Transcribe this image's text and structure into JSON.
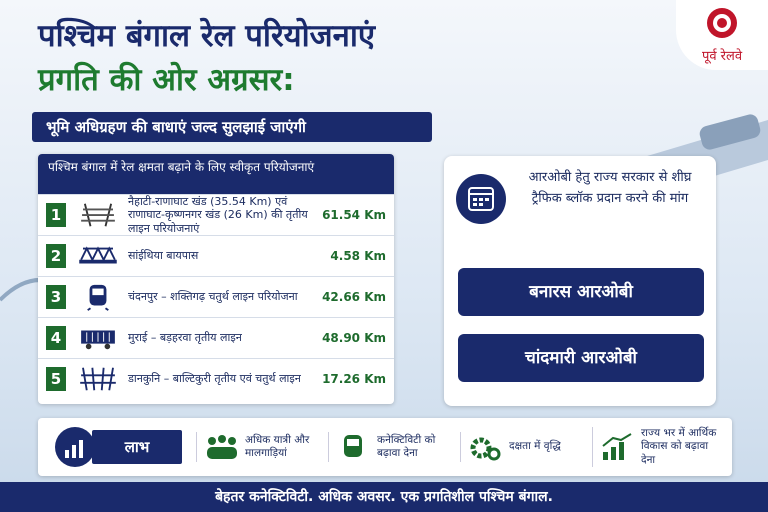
{
  "logo": {
    "label": "पूर्व रेलवे"
  },
  "header": {
    "title_line1": "पश्चिम बंगाल रेल परियोजनाएं",
    "title_line2": "प्रगति की ओर अग्रसर:",
    "subtitle": "भूमि अधिग्रहण की बाधाएं जल्द सुलझाई जाएंगी"
  },
  "projects": {
    "heading": "पश्चिम बंगाल में रेल क्षमता बढ़ाने के लिए स्वीकृत परियोजनाएं",
    "items": [
      {
        "number": "1",
        "name": "नैहाटी-राणाघाट खंड (35.54 Km) एवं राणाघाट-कृष्णनगर खंड (26 Km) की तृतीय लाइन परियोजनाएं",
        "length": "61.54 Km"
      },
      {
        "number": "2",
        "name": "सांईथिया बायपास",
        "length": "4.58 Km"
      },
      {
        "number": "3",
        "name": "चंदनपुर – शक्तिगढ़ चतुर्थ लाइन परियोजना",
        "length": "42.66 Km"
      },
      {
        "number": "4",
        "name": "मुराई – बड़हरवा तृतीय लाइन",
        "length": "48.90 Km"
      },
      {
        "number": "5",
        "name": "डानकुनि – बाल्टिकुरी तृतीय एवं चतुर्थ लाइन",
        "length": "17.26 Km"
      }
    ]
  },
  "demand": {
    "text": "आरओबी हेतु राज्य सरकार से शीघ्र ट्रैफिक ब्लॉक प्रदान करने की मांग",
    "robs": [
      "बनारस आरओबी",
      "चांदमारी आरओबी"
    ]
  },
  "benefits": {
    "label": "लाभ",
    "items": [
      "अधिक यात्री और मालगाड़ियां",
      "कनेक्टिविटी को बढ़ावा देना",
      "दक्षता में वृद्धि",
      "राज्य भर में आर्थिक विकास को बढ़ावा देना"
    ]
  },
  "footer": {
    "tagline": "बेहतर कनेक्टिविटी. अधिक अवसर. एक प्रगतिशील पश्चिम बंगाल."
  }
}
